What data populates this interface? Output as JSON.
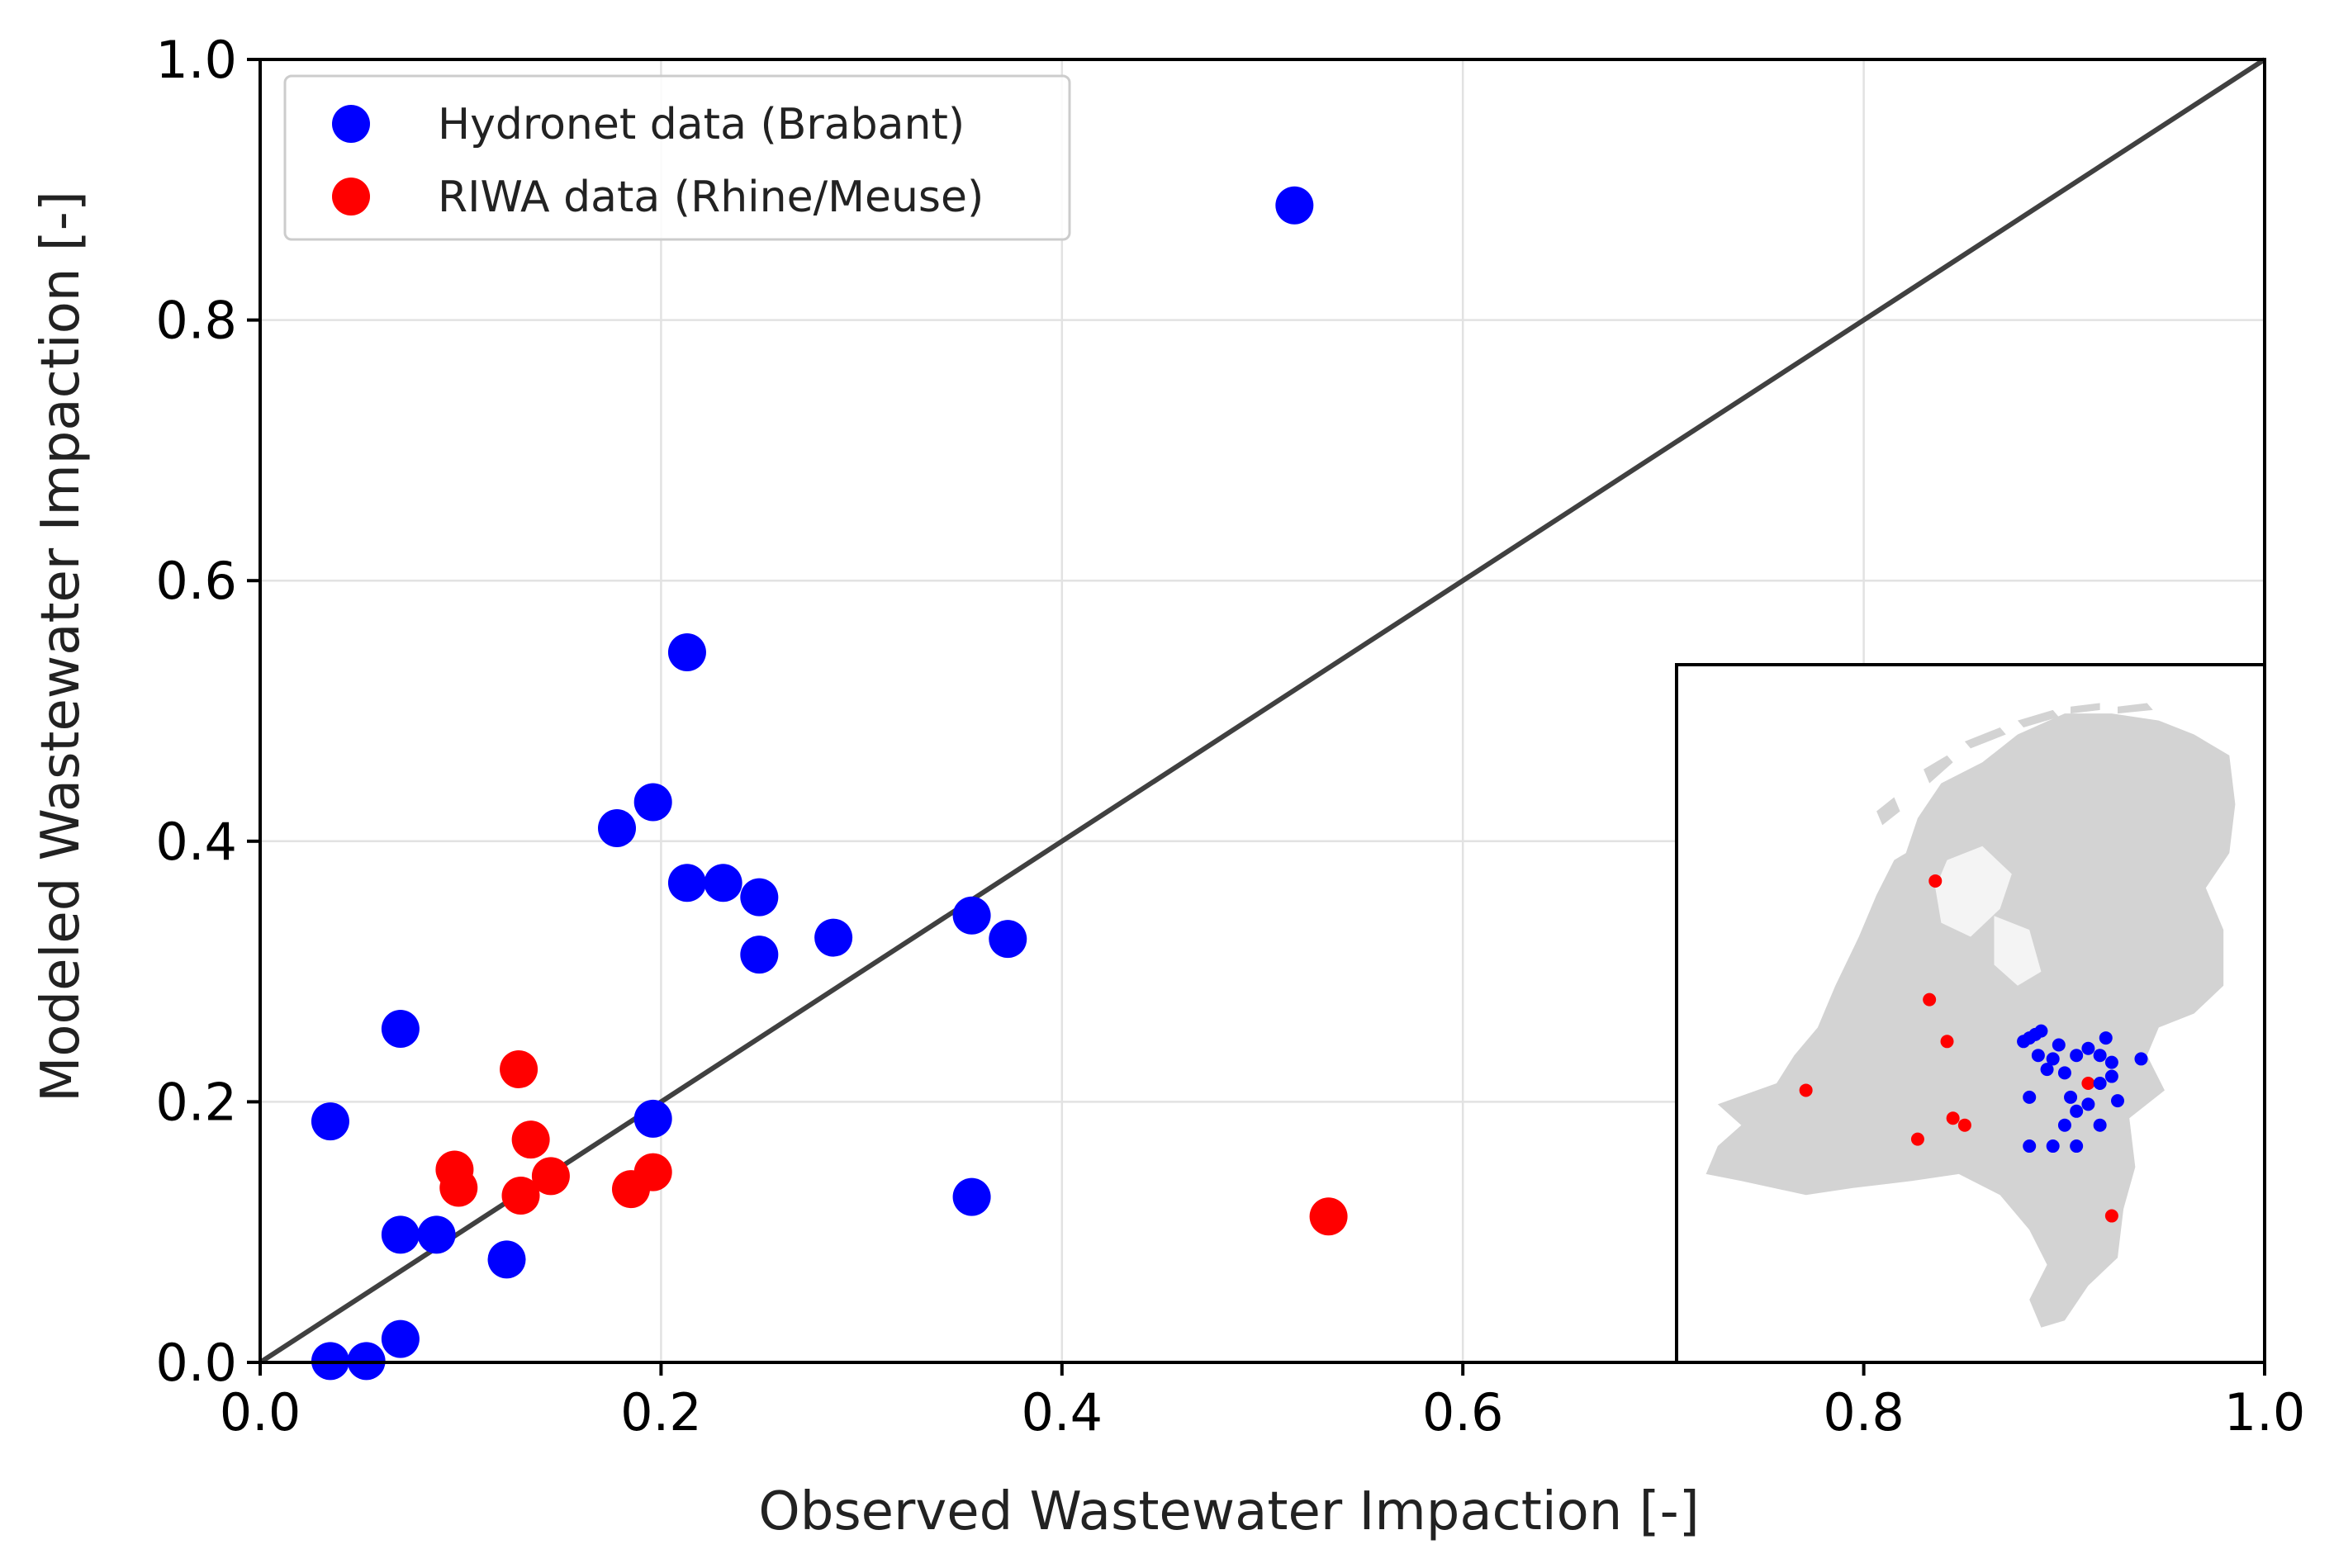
{
  "chart_data": {
    "type": "scatter",
    "title": "",
    "xlabel": "Observed Wastewater Impaction [-]",
    "ylabel": "Modeled Wastewater Impaction [-]",
    "xlim": [
      0.0,
      1.0
    ],
    "ylim": [
      0.0,
      1.0
    ],
    "xticks": [
      "0.0",
      "0.2",
      "0.4",
      "0.6",
      "0.8",
      "1.0"
    ],
    "yticks": [
      "0.0",
      "0.2",
      "0.4",
      "0.6",
      "0.8",
      "1.0"
    ],
    "grid": true,
    "legend_position": "top-left",
    "reference_line": {
      "type": "1:1",
      "color": "#404040"
    },
    "series": [
      {
        "name": "Hydronet data (Brabant)",
        "color": "#0000ff",
        "points": [
          [
            0.035,
            0.185
          ],
          [
            0.07,
            0.256
          ],
          [
            0.07,
            0.098
          ],
          [
            0.088,
            0.098
          ],
          [
            0.035,
            0.001
          ],
          [
            0.053,
            0.001
          ],
          [
            0.07,
            0.018
          ],
          [
            0.123,
            0.079
          ],
          [
            0.178,
            0.41
          ],
          [
            0.196,
            0.43
          ],
          [
            0.213,
            0.545
          ],
          [
            0.213,
            0.368
          ],
          [
            0.231,
            0.368
          ],
          [
            0.249,
            0.357
          ],
          [
            0.249,
            0.313
          ],
          [
            0.286,
            0.326
          ],
          [
            0.355,
            0.343
          ],
          [
            0.373,
            0.325
          ],
          [
            0.196,
            0.187
          ],
          [
            0.355,
            0.127
          ],
          [
            0.516,
            0.888
          ]
        ]
      },
      {
        "name": "RIWA data (Rhine/Meuse)",
        "color": "#ff0000",
        "points": [
          [
            0.097,
            0.148
          ],
          [
            0.099,
            0.134
          ],
          [
            0.129,
            0.225
          ],
          [
            0.135,
            0.171
          ],
          [
            0.13,
            0.128
          ],
          [
            0.145,
            0.143
          ],
          [
            0.185,
            0.133
          ],
          [
            0.196,
            0.146
          ],
          [
            0.533,
            0.112
          ]
        ]
      }
    ],
    "inset": {
      "description_type": "map",
      "land_color": "#d3d3d3",
      "hydronet_locations": [
        [
          0.59,
          0.54
        ],
        [
          0.6,
          0.535
        ],
        [
          0.61,
          0.53
        ],
        [
          0.62,
          0.525
        ],
        [
          0.65,
          0.545
        ],
        [
          0.7,
          0.55
        ],
        [
          0.73,
          0.535
        ],
        [
          0.79,
          0.565
        ],
        [
          0.615,
          0.56
        ],
        [
          0.64,
          0.565
        ],
        [
          0.68,
          0.56
        ],
        [
          0.72,
          0.56
        ],
        [
          0.74,
          0.57
        ],
        [
          0.63,
          0.58
        ],
        [
          0.66,
          0.585
        ],
        [
          0.74,
          0.59
        ],
        [
          0.72,
          0.6
        ],
        [
          0.6,
          0.62
        ],
        [
          0.67,
          0.62
        ],
        [
          0.7,
          0.63
        ],
        [
          0.75,
          0.625
        ],
        [
          0.68,
          0.64
        ],
        [
          0.66,
          0.66
        ],
        [
          0.72,
          0.66
        ],
        [
          0.64,
          0.69
        ],
        [
          0.68,
          0.69
        ],
        [
          0.6,
          0.69
        ]
      ],
      "riwa_locations": [
        [
          0.44,
          0.31
        ],
        [
          0.43,
          0.48
        ],
        [
          0.46,
          0.54
        ],
        [
          0.22,
          0.61
        ],
        [
          0.47,
          0.65
        ],
        [
          0.49,
          0.66
        ],
        [
          0.41,
          0.68
        ],
        [
          0.7,
          0.6
        ],
        [
          0.74,
          0.79
        ]
      ]
    }
  }
}
